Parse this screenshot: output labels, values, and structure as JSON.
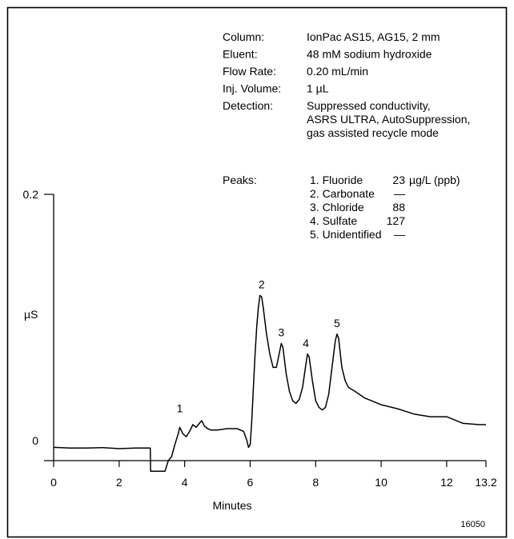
{
  "conditions": [
    {
      "label": "Column:",
      "value": [
        "IonPac AS15, AG15, 2 mm"
      ]
    },
    {
      "label": "Eluent:",
      "value": [
        "48 mM sodium hydroxide"
      ]
    },
    {
      "label": "Flow Rate:",
      "value": [
        "0.20 mL/min"
      ]
    },
    {
      "label": "Inj. Volume:",
      "value": [
        "1 µL"
      ]
    },
    {
      "label": "Detection:",
      "value": [
        "Suppressed conductivity,",
        "ASRS ULTRA, AutoSuppression,",
        "gas assisted recycle mode"
      ]
    }
  ],
  "peaks_label": "Peaks:",
  "peaks": [
    {
      "name": "1. Fluoride",
      "amount": "23",
      "unit": "µg/L (ppb)"
    },
    {
      "name": "2. Carbonate",
      "amount": "—",
      "unit": ""
    },
    {
      "name": "3. Chloride",
      "amount": "88",
      "unit": ""
    },
    {
      "name": "4. Sulfate",
      "amount": "127",
      "unit": ""
    },
    {
      "name": "5. Unidentified",
      "amount": "—",
      "unit": ""
    }
  ],
  "figure_id": "16050",
  "chart_data": {
    "type": "line",
    "xlabel": "Minutes",
    "ylabel": "µS",
    "xlim": [
      0,
      13.2
    ],
    "ylim": [
      0,
      0.2
    ],
    "xticks": [
      {
        "v": 0,
        "label": "0"
      },
      {
        "v": 2,
        "label": "2"
      },
      {
        "v": 4,
        "label": "4"
      },
      {
        "v": 6,
        "label": "6"
      },
      {
        "v": 8,
        "label": "8"
      },
      {
        "v": 10,
        "label": "10"
      },
      {
        "v": 12,
        "label": "12"
      },
      {
        "v": 13.2,
        "label": "13.2"
      }
    ],
    "yticks": [
      {
        "v": 0,
        "label": "0"
      },
      {
        "v": 0.2,
        "label": "0.2"
      }
    ],
    "peak_labels": [
      {
        "x": 3.85,
        "y": 0.031,
        "label": "1"
      },
      {
        "x": 6.35,
        "y": 0.124,
        "label": "2"
      },
      {
        "x": 6.95,
        "y": 0.088,
        "label": "3"
      },
      {
        "x": 7.7,
        "y": 0.08,
        "label": "4"
      },
      {
        "x": 8.65,
        "y": 0.095,
        "label": "5"
      }
    ],
    "series": [
      {
        "x": [
          0,
          0.5,
          1,
          1.5,
          2,
          2.5,
          2.95,
          2.96,
          3.4,
          3.5,
          3.6,
          3.7,
          3.8,
          3.85,
          3.95,
          4.05,
          4.15,
          4.25,
          4.35,
          4.45,
          4.52,
          4.6,
          4.7,
          4.8,
          5.0,
          5.3,
          5.6,
          5.8,
          5.9,
          5.95,
          6.0,
          6.05,
          6.1,
          6.15,
          6.2,
          6.25,
          6.3,
          6.35,
          6.4,
          6.5,
          6.6,
          6.7,
          6.8,
          6.9,
          6.95,
          7.0,
          7.1,
          7.2,
          7.3,
          7.4,
          7.5,
          7.6,
          7.7,
          7.75,
          7.8,
          7.9,
          8.0,
          8.1,
          8.2,
          8.3,
          8.4,
          8.5,
          8.6,
          8.65,
          8.7,
          8.8,
          8.9,
          9.0,
          9.2,
          9.5,
          10.0,
          10.5,
          11.0,
          11.5,
          12.0,
          12.5,
          13.0,
          13.2
        ],
        "y": [
          0.01,
          0.0095,
          0.0095,
          0.0098,
          0.009,
          0.0095,
          0.0095,
          -0.008,
          -0.008,
          0.0,
          0.003,
          0.012,
          0.02,
          0.025,
          0.02,
          0.018,
          0.022,
          0.027,
          0.025,
          0.028,
          0.03,
          0.026,
          0.024,
          0.023,
          0.023,
          0.024,
          0.024,
          0.022,
          0.015,
          0.01,
          0.012,
          0.03,
          0.055,
          0.08,
          0.1,
          0.115,
          0.124,
          0.123,
          0.115,
          0.095,
          0.08,
          0.07,
          0.07,
          0.082,
          0.088,
          0.085,
          0.065,
          0.052,
          0.045,
          0.043,
          0.046,
          0.055,
          0.072,
          0.08,
          0.078,
          0.06,
          0.045,
          0.04,
          0.038,
          0.04,
          0.05,
          0.07,
          0.09,
          0.095,
          0.092,
          0.07,
          0.06,
          0.055,
          0.052,
          0.047,
          0.042,
          0.039,
          0.035,
          0.033,
          0.033,
          0.028,
          0.027,
          0.027
        ]
      }
    ]
  }
}
